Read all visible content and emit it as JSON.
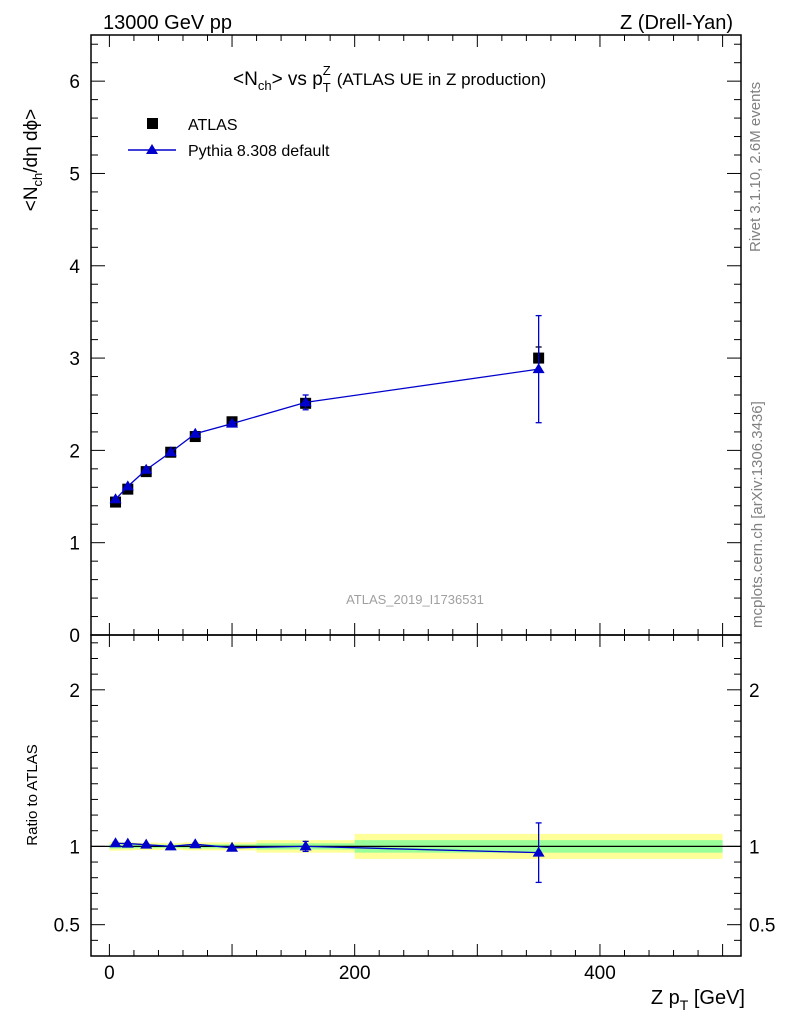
{
  "header": {
    "left": "13000 GeV pp",
    "right": "Z (Drell-Yan)"
  },
  "title": {
    "main": "<N",
    "main_sub": "ch",
    "main_mid": "> vs p",
    "main_sub2": "T",
    "main_sup": "Z",
    "extra": "(ATLAS UE in Z production)"
  },
  "side_labels": {
    "rivet": "Rivet 3.1.10,  2.6M events",
    "mcplots": "mcplots.cern.ch [arXiv:1306.3436]"
  },
  "watermark": "ATLAS_2019_I1736531",
  "legend": {
    "data_label": "ATLAS",
    "mc_label": "Pythia 8.308 default"
  },
  "colors": {
    "data": "#000000",
    "mc": "#0000cc",
    "band_inner": "#99ff99",
    "band_outer": "#ffff99"
  },
  "chart_data": [
    {
      "type": "scatter",
      "panel": "main",
      "ylabel": "<N_ch/dη dϕ>",
      "ylabel_parts": [
        "<N",
        "ch",
        "/dη dϕ>"
      ],
      "xlim": [
        -15,
        515
      ],
      "ylim": [
        0,
        6.5
      ],
      "y_ticks": [
        "0",
        "1",
        "2",
        "3",
        "4",
        "5",
        "6"
      ],
      "series": [
        {
          "name": "ATLAS",
          "style": "markers",
          "x": [
            5,
            15,
            30,
            50,
            70,
            100,
            160,
            350
          ],
          "y": [
            1.44,
            1.58,
            1.77,
            1.98,
            2.15,
            2.31,
            2.51,
            3.0
          ],
          "yerr": [
            0.02,
            0.02,
            0.02,
            0.02,
            0.03,
            0.03,
            0.05,
            0.12
          ]
        },
        {
          "name": "Pythia 8.308 default",
          "style": "line+triangles",
          "x": [
            5,
            15,
            30,
            50,
            70,
            100,
            160,
            350
          ],
          "y": [
            1.47,
            1.61,
            1.79,
            1.98,
            2.18,
            2.29,
            2.52,
            2.88
          ],
          "yerr": [
            0.01,
            0.01,
            0.01,
            0.01,
            0.01,
            0.02,
            0.08,
            0.58
          ]
        }
      ]
    },
    {
      "type": "scatter",
      "panel": "ratio",
      "ylabel": "Ratio to ATLAS",
      "xlabel": "Z p_T [GeV]",
      "xlabel_parts": [
        "Z p",
        "T",
        " [GeV]"
      ],
      "xlim": [
        -15,
        515
      ],
      "ylim": [
        0.3,
        2.35
      ],
      "x_ticks": [
        "0",
        "200",
        "400"
      ],
      "y_ticks": [
        "0.5",
        "1",
        "2"
      ],
      "band_edges": [
        0,
        10,
        20,
        40,
        60,
        80,
        120,
        200,
        500
      ],
      "band_inner": [
        0.014,
        0.013,
        0.012,
        0.011,
        0.013,
        0.013,
        0.02,
        0.04
      ],
      "band_outer": [
        0.028,
        0.026,
        0.024,
        0.022,
        0.026,
        0.026,
        0.04,
        0.08
      ],
      "series": [
        {
          "name": "Pythia 8.308 default",
          "style": "line+triangles",
          "x": [
            5,
            15,
            30,
            50,
            70,
            100,
            160,
            350
          ],
          "y": [
            1.02,
            1.018,
            1.011,
            1.0,
            1.014,
            0.991,
            1.0,
            0.96
          ],
          "yerr": [
            0.006,
            0.006,
            0.006,
            0.005,
            0.005,
            0.008,
            0.032,
            0.19
          ]
        }
      ]
    }
  ]
}
